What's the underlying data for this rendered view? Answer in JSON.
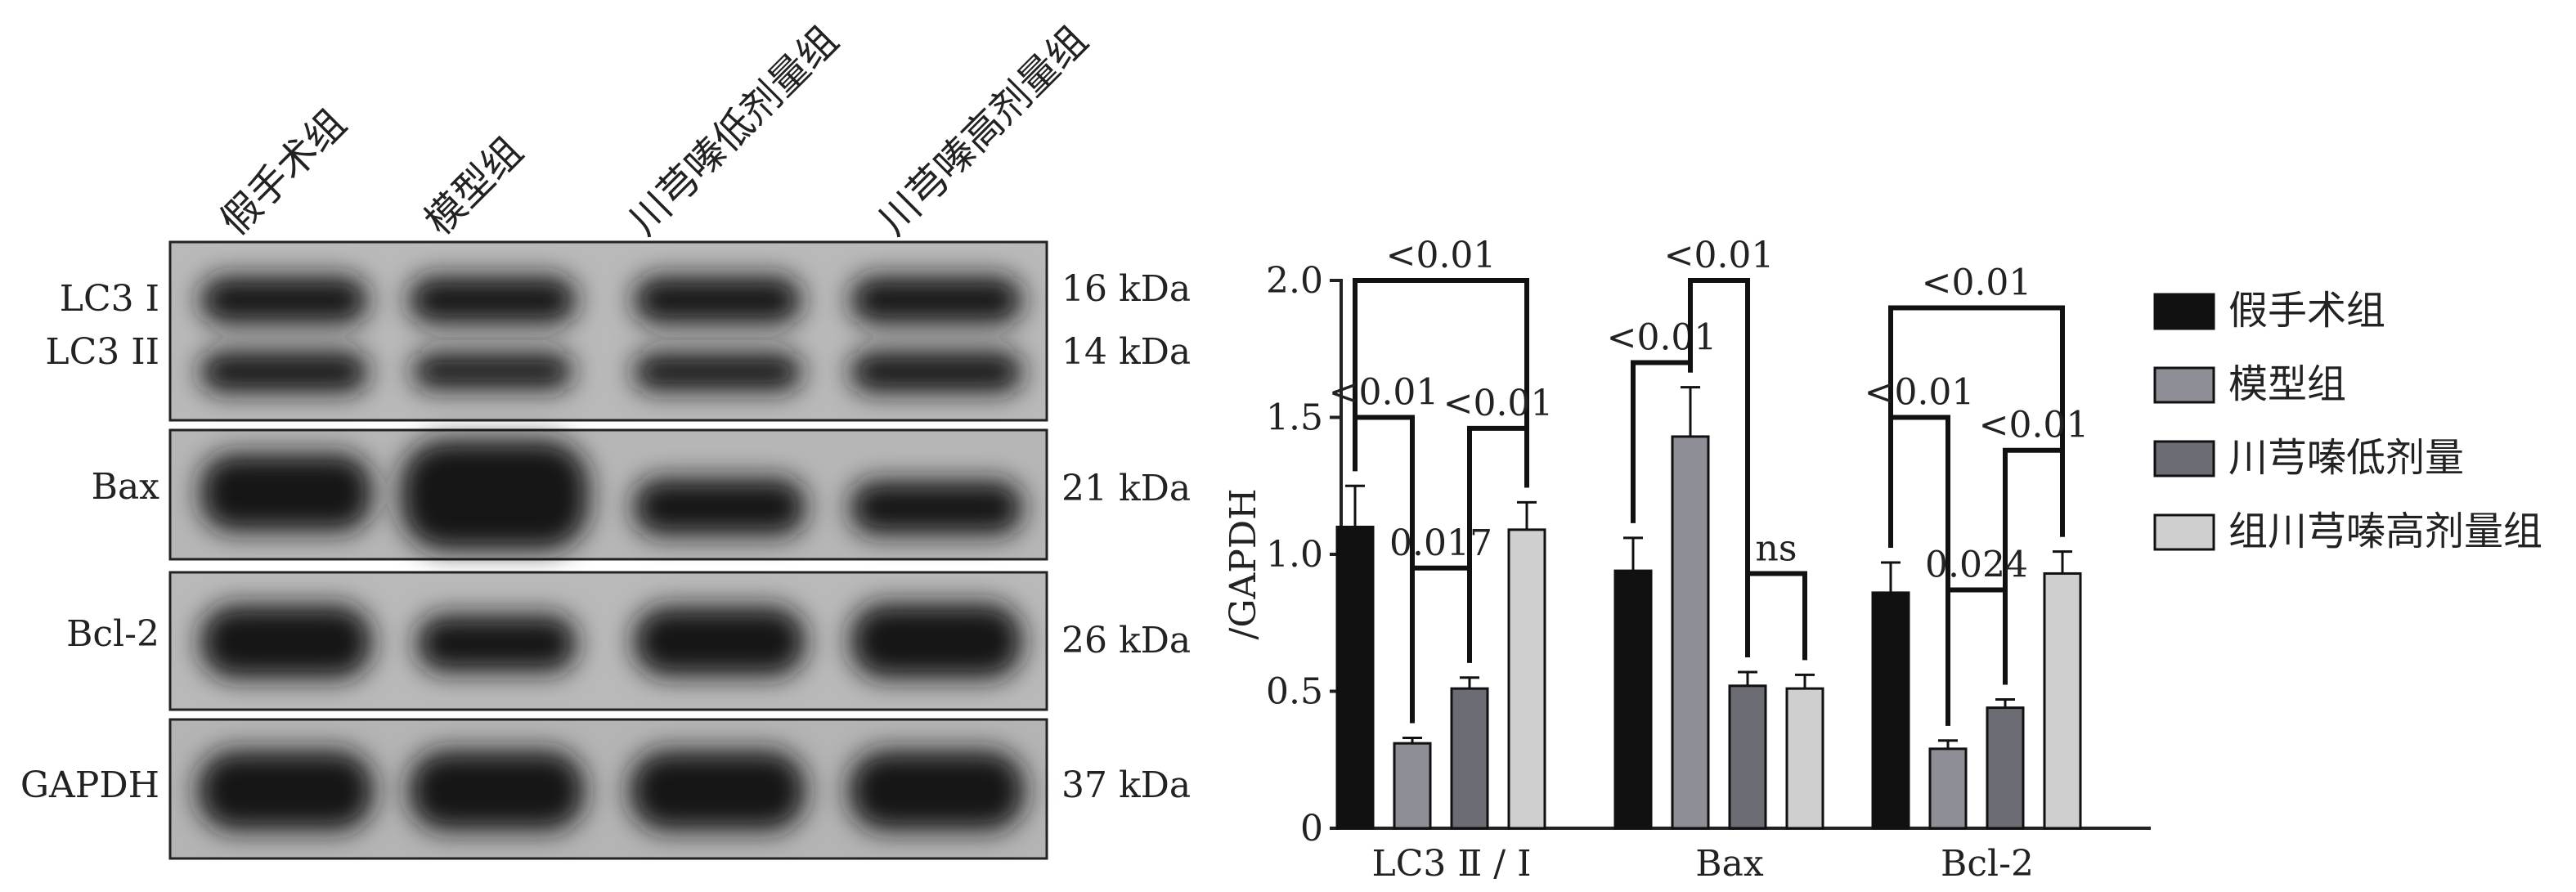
{
  "blot": {
    "lane_labels": [
      "假手术组",
      "模型组",
      "川芎嗪低剂量组",
      "川芎嗪高剂量组"
    ],
    "panels": [
      {
        "rows": [
          {
            "label": "LC3 I",
            "kda": "16 kDa"
          },
          {
            "label": "LC3 II",
            "kda": "14 kDa"
          }
        ]
      },
      {
        "rows": [
          {
            "label": "Bax",
            "kda": "21 kDa"
          }
        ]
      },
      {
        "rows": [
          {
            "label": "Bcl-2",
            "kda": "26 kDa"
          }
        ]
      },
      {
        "rows": [
          {
            "label": "GAPDH",
            "kda": "37 kDa"
          }
        ]
      }
    ]
  },
  "chart_data": {
    "type": "bar",
    "categories": [
      "LC3 Ⅱ / Ⅰ",
      "Bax",
      "Bcl-2"
    ],
    "ylabel": "/GAPDH",
    "ylim": [
      0,
      2.0
    ],
    "yticks": [
      "0",
      "0.5",
      "1.0",
      "1.5",
      "2.0"
    ],
    "legend_position": "right",
    "series": [
      {
        "name": "假手术组",
        "color": "#111111",
        "values": [
          1.1,
          0.94,
          0.86
        ],
        "errors": [
          0.15,
          0.12,
          0.11
        ]
      },
      {
        "name": "模型组",
        "color": "#8e8e96",
        "values": [
          0.31,
          1.43,
          0.29
        ],
        "errors": [
          0.02,
          0.18,
          0.03
        ]
      },
      {
        "name": "川芎嗪低剂量",
        "color": "#6c6c75",
        "values": [
          0.51,
          0.52,
          0.44
        ],
        "errors": [
          0.04,
          0.05,
          0.03
        ]
      },
      {
        "name": "组川芎嗪高剂量组",
        "color": "#cfcfcf",
        "values": [
          1.09,
          0.51,
          0.93
        ],
        "errors": [
          0.1,
          0.05,
          0.08
        ]
      }
    ],
    "annotations": [
      {
        "label": "<0.01",
        "group": 0,
        "from": 0,
        "to": 3,
        "level": 2.0
      },
      {
        "label": "<0.01",
        "group": 0,
        "from": 0,
        "to": 1,
        "level": 1.5
      },
      {
        "label": "<0.01",
        "group": 0,
        "from": 2,
        "to": 3,
        "level": 1.46
      },
      {
        "label": "0.017",
        "group": 0,
        "from": 1,
        "to": 2,
        "level": 0.95
      },
      {
        "label": "<0.01",
        "group": 1,
        "from": 0,
        "to": 1,
        "level": 1.7
      },
      {
        "label": "<0.01",
        "group": 1,
        "from": 1,
        "to": 2,
        "level": 2.0
      },
      {
        "label": "ns",
        "group": 1,
        "from": 2,
        "to": 3,
        "level": 0.93
      },
      {
        "label": "<0.01",
        "group": 2,
        "from": 0,
        "to": 3,
        "level": 1.9
      },
      {
        "label": "<0.01",
        "group": 2,
        "from": 0,
        "to": 1,
        "level": 1.5
      },
      {
        "label": "<0.01",
        "group": 2,
        "from": 2,
        "to": 3,
        "level": 1.38
      },
      {
        "label": "0.024",
        "group": 2,
        "from": 1,
        "to": 2,
        "level": 0.87
      }
    ]
  }
}
